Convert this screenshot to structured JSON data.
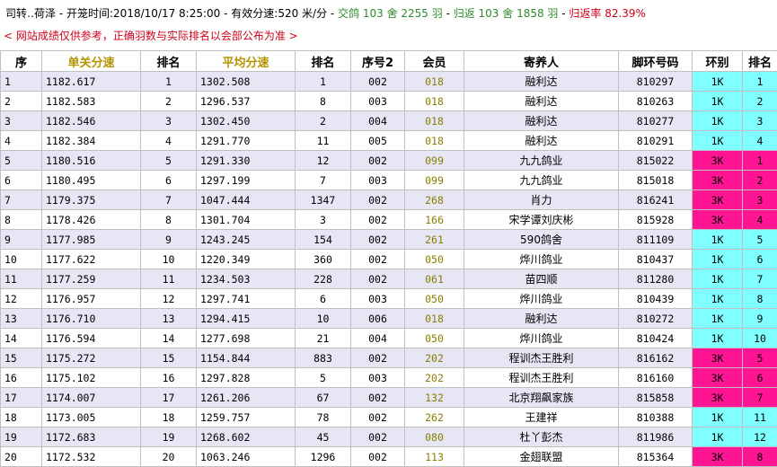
{
  "header": {
    "prefix": "司转‥",
    "location": "荷泽",
    "sep1": " - ",
    "release_label": "开笼时间:",
    "release_time": "2018/10/17 8:25:00",
    "sep2": " - ",
    "speed_label": "有效分速:",
    "speed_value": "520 米/分",
    "sep3": " - ",
    "submitted": "交鸽 103 舍 2255 羽",
    "sep4": " - ",
    "returned": "归返 103 舍 1858 羽",
    "sep5": " - ",
    "return_rate": "归返率 82.39%"
  },
  "notice": "< 网站成绩仅供参考，正确羽数与实际排名以会部公布为准 >",
  "colors": {
    "odd_row": "#e6e6f5",
    "ring_1k": "#7fffff",
    "ring_3k": "#ff1493",
    "member_text": "#8b7d00",
    "gold_header": "#b59400"
  },
  "columns": [
    "序",
    "单关分速",
    "排名",
    "平均分速",
    "排名",
    "序号2",
    "会员",
    "寄养人",
    "脚环号码",
    "环别",
    "排名"
  ],
  "rows": [
    [
      "1",
      "1182.617",
      "1",
      "1302.508",
      "1",
      "002",
      "018",
      "融利达",
      "810297",
      "1K",
      "1"
    ],
    [
      "2",
      "1182.583",
      "2",
      "1296.537",
      "8",
      "003",
      "018",
      "融利达",
      "810263",
      "1K",
      "2"
    ],
    [
      "3",
      "1182.546",
      "3",
      "1302.450",
      "2",
      "004",
      "018",
      "融利达",
      "810277",
      "1K",
      "3"
    ],
    [
      "4",
      "1182.384",
      "4",
      "1291.770",
      "11",
      "005",
      "018",
      "融利达",
      "810291",
      "1K",
      "4"
    ],
    [
      "5",
      "1180.516",
      "5",
      "1291.330",
      "12",
      "002",
      "099",
      "九九鸽业",
      "815022",
      "3K",
      "1"
    ],
    [
      "6",
      "1180.495",
      "6",
      "1297.199",
      "7",
      "003",
      "099",
      "九九鸽业",
      "815018",
      "3K",
      "2"
    ],
    [
      "7",
      "1179.375",
      "7",
      "1047.444",
      "1347",
      "002",
      "268",
      "肖力",
      "816241",
      "3K",
      "3"
    ],
    [
      "8",
      "1178.426",
      "8",
      "1301.704",
      "3",
      "002",
      "166",
      "宋学谭刘庆彬",
      "815928",
      "3K",
      "4"
    ],
    [
      "9",
      "1177.985",
      "9",
      "1243.245",
      "154",
      "002",
      "261",
      "590鸽舍",
      "811109",
      "1K",
      "5"
    ],
    [
      "10",
      "1177.622",
      "10",
      "1220.349",
      "360",
      "002",
      "050",
      "烨川鸽业",
      "810437",
      "1K",
      "6"
    ],
    [
      "11",
      "1177.259",
      "11",
      "1234.503",
      "228",
      "002",
      "061",
      "苗四顺",
      "811280",
      "1K",
      "7"
    ],
    [
      "12",
      "1176.957",
      "12",
      "1297.741",
      "6",
      "003",
      "050",
      "烨川鸽业",
      "810439",
      "1K",
      "8"
    ],
    [
      "13",
      "1176.710",
      "13",
      "1294.415",
      "10",
      "006",
      "018",
      "融利达",
      "810272",
      "1K",
      "9"
    ],
    [
      "14",
      "1176.594",
      "14",
      "1277.698",
      "21",
      "004",
      "050",
      "烨川鸽业",
      "810424",
      "1K",
      "10"
    ],
    [
      "15",
      "1175.272",
      "15",
      "1154.844",
      "883",
      "002",
      "202",
      "程训杰王胜利",
      "816162",
      "3K",
      "5"
    ],
    [
      "16",
      "1175.102",
      "16",
      "1297.828",
      "5",
      "003",
      "202",
      "程训杰王胜利",
      "816160",
      "3K",
      "6"
    ],
    [
      "17",
      "1174.007",
      "17",
      "1261.206",
      "67",
      "002",
      "132",
      "北京翔飙家族",
      "815858",
      "3K",
      "7"
    ],
    [
      "18",
      "1173.005",
      "18",
      "1259.757",
      "78",
      "002",
      "262",
      "王建祥",
      "810388",
      "1K",
      "11"
    ],
    [
      "19",
      "1172.683",
      "19",
      "1268.602",
      "45",
      "002",
      "080",
      "杜丫彭杰",
      "811986",
      "1K",
      "12"
    ],
    [
      "20",
      "1172.532",
      "20",
      "1063.246",
      "1296",
      "002",
      "113",
      "金翅联盟",
      "815364",
      "3K",
      "8"
    ]
  ]
}
